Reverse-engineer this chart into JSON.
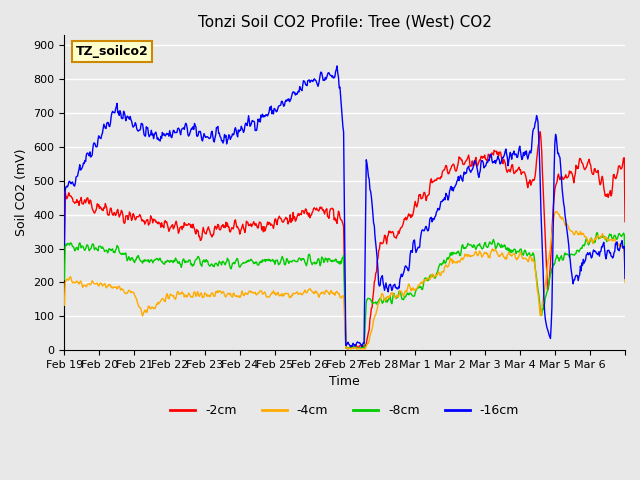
{
  "title": "Tonzi Soil CO2 Profile: Tree (West) CO2",
  "ylabel": "Soil CO2 (mV)",
  "xlabel": "Time",
  "legend_label": "TZ_soilco2",
  "series_labels": [
    "-2cm",
    "-4cm",
    "-8cm",
    "-16cm"
  ],
  "series_colors": [
    "#ff0000",
    "#ffaa00",
    "#00cc00",
    "#0000ff"
  ],
  "ylim": [
    0,
    930
  ],
  "yticks": [
    0,
    100,
    200,
    300,
    400,
    500,
    600,
    700,
    800,
    900
  ],
  "background_color": "#e8e8e8",
  "plot_bg_color": "#e8e8e8",
  "grid_color": "#ffffff",
  "n_days": 16,
  "x_tick_positions": [
    0,
    1,
    2,
    3,
    4,
    5,
    6,
    7,
    8,
    9,
    10,
    11,
    12,
    13,
    14,
    15,
    16
  ],
  "x_tick_labels": [
    "Feb 19",
    "Feb 20",
    "Feb 21",
    "Feb 22",
    "Feb 23",
    "Feb 24",
    "Feb 25",
    "Feb 26",
    "Feb 27",
    "Feb 28",
    "Mar 1",
    "Mar 2",
    "Mar 3",
    "Mar 4",
    "Mar 5",
    "Mar 6",
    ""
  ],
  "legend_box_color": "#ffffcc",
  "legend_box_edge": "#cc8800"
}
